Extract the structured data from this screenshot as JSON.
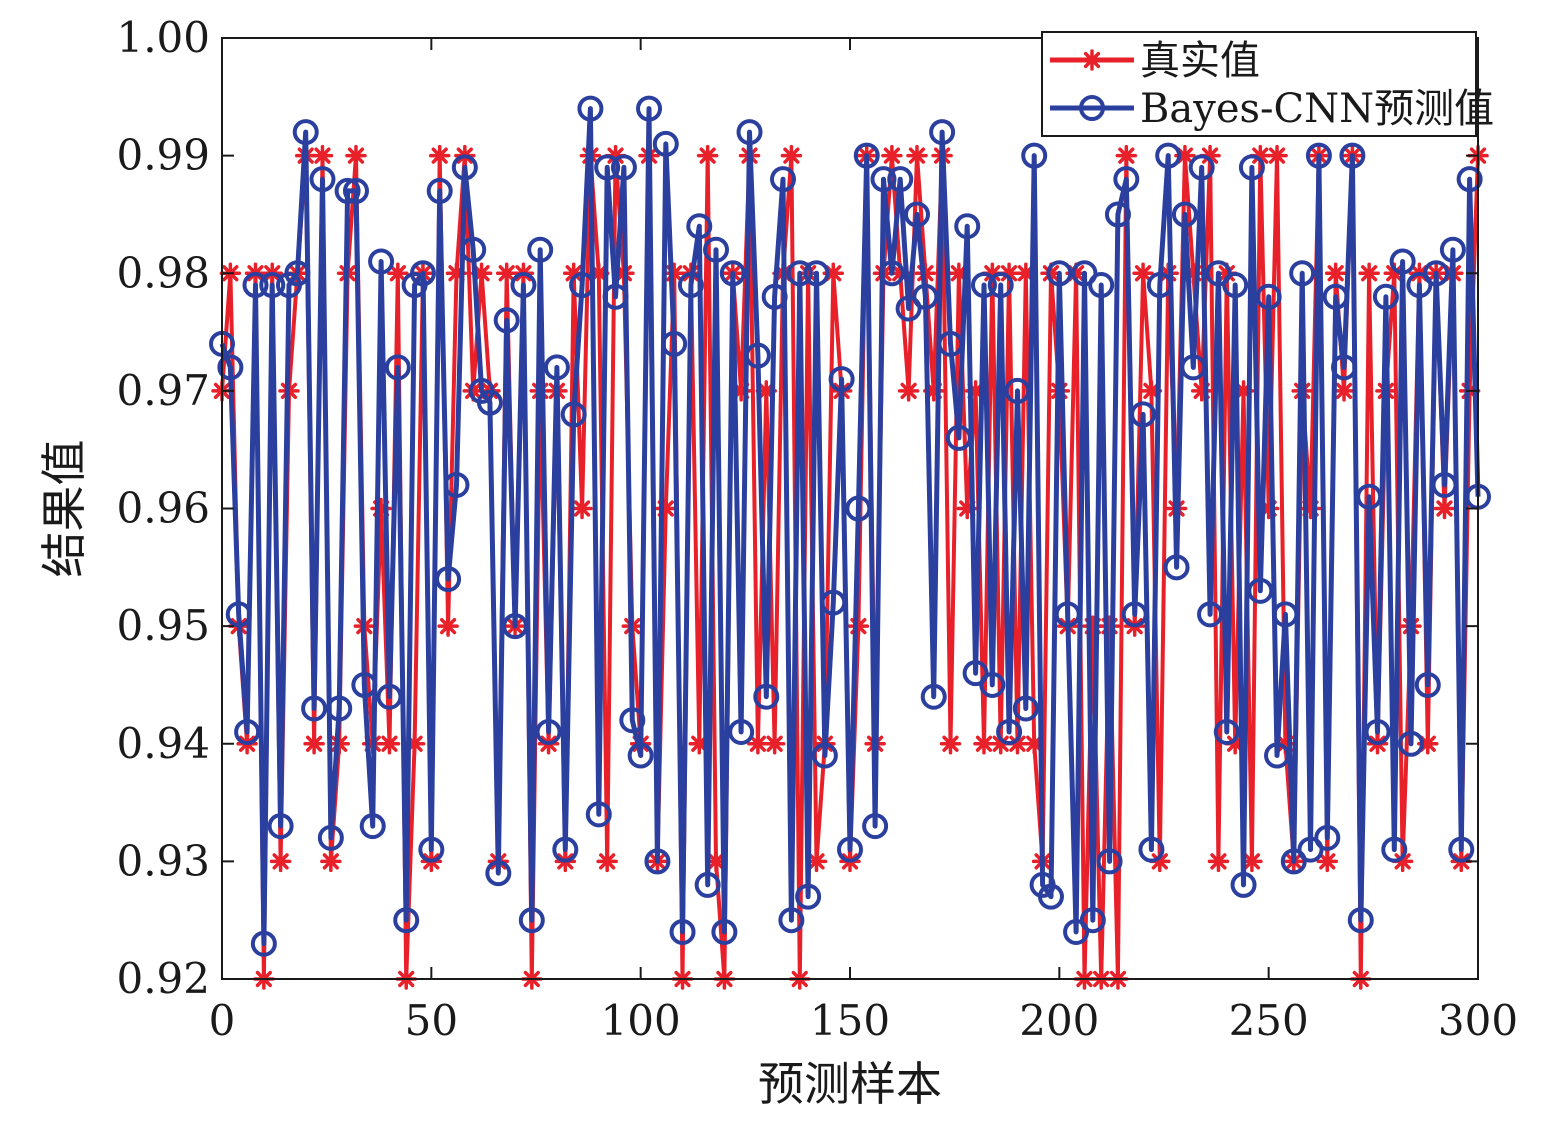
{
  "chart_data": {
    "type": "line",
    "xlabel": "预测样本",
    "ylabel": "结果值",
    "xlim": [
      0,
      300
    ],
    "ylim": [
      0.92,
      1.0
    ],
    "xticks": [
      "0",
      "50",
      "100",
      "150",
      "200",
      "250",
      "300"
    ],
    "yticks": [
      "0.92",
      "0.93",
      "0.94",
      "0.95",
      "0.96",
      "0.97",
      "0.98",
      "0.99",
      "1.00"
    ],
    "grid": false,
    "legend_position": "top-right",
    "series": [
      {
        "name": "真实值",
        "color": "#e8202a",
        "marker": "asterisk",
        "points": [
          [
            0,
            0.97
          ],
          [
            2,
            0.98
          ],
          [
            4,
            0.95
          ],
          [
            6,
            0.94
          ],
          [
            8,
            0.98
          ],
          [
            10,
            0.92
          ],
          [
            12,
            0.98
          ],
          [
            14,
            0.93
          ],
          [
            16,
            0.97
          ],
          [
            18,
            0.98
          ],
          [
            20,
            0.99
          ],
          [
            22,
            0.94
          ],
          [
            24,
            0.99
          ],
          [
            26,
            0.93
          ],
          [
            28,
            0.94
          ],
          [
            30,
            0.98
          ],
          [
            32,
            0.99
          ],
          [
            34,
            0.95
          ],
          [
            36,
            0.94
          ],
          [
            38,
            0.96
          ],
          [
            40,
            0.94
          ],
          [
            42,
            0.98
          ],
          [
            44,
            0.92
          ],
          [
            46,
            0.94
          ],
          [
            48,
            0.98
          ],
          [
            50,
            0.93
          ],
          [
            52,
            0.99
          ],
          [
            54,
            0.95
          ],
          [
            56,
            0.98
          ],
          [
            58,
            0.99
          ],
          [
            60,
            0.97
          ],
          [
            62,
            0.98
          ],
          [
            64,
            0.97
          ],
          [
            66,
            0.93
          ],
          [
            68,
            0.98
          ],
          [
            70,
            0.95
          ],
          [
            72,
            0.98
          ],
          [
            74,
            0.92
          ],
          [
            76,
            0.97
          ],
          [
            78,
            0.94
          ],
          [
            80,
            0.97
          ],
          [
            82,
            0.93
          ],
          [
            84,
            0.98
          ],
          [
            86,
            0.96
          ],
          [
            88,
            0.99
          ],
          [
            90,
            0.98
          ],
          [
            92,
            0.93
          ],
          [
            94,
            0.99
          ],
          [
            96,
            0.98
          ],
          [
            98,
            0.95
          ],
          [
            100,
            0.94
          ],
          [
            102,
            0.99
          ],
          [
            104,
            0.93
          ],
          [
            106,
            0.96
          ],
          [
            108,
            0.98
          ],
          [
            110,
            0.92
          ],
          [
            112,
            0.98
          ],
          [
            114,
            0.94
          ],
          [
            116,
            0.99
          ],
          [
            118,
            0.93
          ],
          [
            120,
            0.92
          ],
          [
            122,
            0.98
          ],
          [
            124,
            0.97
          ],
          [
            126,
            0.99
          ],
          [
            128,
            0.94
          ],
          [
            130,
            0.97
          ],
          [
            132,
            0.94
          ],
          [
            134,
            0.98
          ],
          [
            136,
            0.99
          ],
          [
            138,
            0.92
          ],
          [
            140,
            0.98
          ],
          [
            142,
            0.93
          ],
          [
            144,
            0.94
          ],
          [
            146,
            0.98
          ],
          [
            148,
            0.97
          ],
          [
            150,
            0.93
          ],
          [
            152,
            0.95
          ],
          [
            154,
            0.99
          ],
          [
            156,
            0.94
          ],
          [
            158,
            0.98
          ],
          [
            160,
            0.99
          ],
          [
            162,
            0.98
          ],
          [
            164,
            0.97
          ],
          [
            166,
            0.99
          ],
          [
            168,
            0.98
          ],
          [
            170,
            0.97
          ],
          [
            172,
            0.99
          ],
          [
            174,
            0.94
          ],
          [
            176,
            0.98
          ],
          [
            178,
            0.96
          ],
          [
            180,
            0.97
          ],
          [
            182,
            0.94
          ],
          [
            184,
            0.98
          ],
          [
            186,
            0.94
          ],
          [
            188,
            0.98
          ],
          [
            190,
            0.94
          ],
          [
            192,
            0.98
          ],
          [
            194,
            0.94
          ],
          [
            196,
            0.93
          ],
          [
            198,
            0.98
          ],
          [
            200,
            0.97
          ],
          [
            202,
            0.95
          ],
          [
            204,
            0.98
          ],
          [
            206,
            0.92
          ],
          [
            208,
            0.95
          ],
          [
            210,
            0.92
          ],
          [
            212,
            0.95
          ],
          [
            214,
            0.92
          ],
          [
            216,
            0.99
          ],
          [
            218,
            0.95
          ],
          [
            220,
            0.98
          ],
          [
            222,
            0.97
          ],
          [
            224,
            0.93
          ],
          [
            226,
            0.98
          ],
          [
            228,
            0.96
          ],
          [
            230,
            0.99
          ],
          [
            232,
            0.98
          ],
          [
            234,
            0.97
          ],
          [
            236,
            0.99
          ],
          [
            238,
            0.93
          ],
          [
            240,
            0.98
          ],
          [
            242,
            0.94
          ],
          [
            244,
            0.97
          ],
          [
            246,
            0.93
          ],
          [
            248,
            0.99
          ],
          [
            250,
            0.96
          ],
          [
            252,
            0.99
          ],
          [
            254,
            0.94
          ],
          [
            256,
            0.93
          ],
          [
            258,
            0.97
          ],
          [
            260,
            0.96
          ],
          [
            262,
            0.99
          ],
          [
            264,
            0.93
          ],
          [
            266,
            0.98
          ],
          [
            268,
            0.97
          ],
          [
            270,
            0.99
          ],
          [
            272,
            0.92
          ],
          [
            274,
            0.98
          ],
          [
            276,
            0.94
          ],
          [
            278,
            0.97
          ],
          [
            280,
            0.98
          ],
          [
            282,
            0.93
          ],
          [
            284,
            0.95
          ],
          [
            286,
            0.98
          ],
          [
            288,
            0.94
          ],
          [
            290,
            0.98
          ],
          [
            292,
            0.96
          ],
          [
            294,
            0.98
          ],
          [
            296,
            0.93
          ],
          [
            298,
            0.97
          ],
          [
            300,
            0.99
          ]
        ]
      },
      {
        "name": "Bayes-CNN预测值",
        "color": "#2b3f9e",
        "marker": "circle",
        "points": [
          [
            0,
            0.974
          ],
          [
            2,
            0.972
          ],
          [
            4,
            0.951
          ],
          [
            6,
            0.941
          ],
          [
            8,
            0.979
          ],
          [
            10,
            0.923
          ],
          [
            12,
            0.979
          ],
          [
            14,
            0.933
          ],
          [
            16,
            0.979
          ],
          [
            18,
            0.98
          ],
          [
            20,
            0.992
          ],
          [
            22,
            0.943
          ],
          [
            24,
            0.988
          ],
          [
            26,
            0.932
          ],
          [
            28,
            0.943
          ],
          [
            30,
            0.987
          ],
          [
            32,
            0.987
          ],
          [
            34,
            0.945
          ],
          [
            36,
            0.933
          ],
          [
            38,
            0.981
          ],
          [
            40,
            0.944
          ],
          [
            42,
            0.972
          ],
          [
            44,
            0.925
          ],
          [
            46,
            0.979
          ],
          [
            48,
            0.98
          ],
          [
            50,
            0.931
          ],
          [
            52,
            0.987
          ],
          [
            54,
            0.954
          ],
          [
            56,
            0.962
          ],
          [
            58,
            0.989
          ],
          [
            60,
            0.982
          ],
          [
            62,
            0.97
          ],
          [
            64,
            0.969
          ],
          [
            66,
            0.929
          ],
          [
            68,
            0.976
          ],
          [
            70,
            0.95
          ],
          [
            72,
            0.979
          ],
          [
            74,
            0.925
          ],
          [
            76,
            0.982
          ],
          [
            78,
            0.941
          ],
          [
            80,
            0.972
          ],
          [
            82,
            0.931
          ],
          [
            84,
            0.968
          ],
          [
            86,
            0.979
          ],
          [
            88,
            0.994
          ],
          [
            90,
            0.934
          ],
          [
            92,
            0.989
          ],
          [
            94,
            0.978
          ],
          [
            96,
            0.989
          ],
          [
            98,
            0.942
          ],
          [
            100,
            0.939
          ],
          [
            102,
            0.994
          ],
          [
            104,
            0.93
          ],
          [
            106,
            0.991
          ],
          [
            108,
            0.974
          ],
          [
            110,
            0.924
          ],
          [
            112,
            0.979
          ],
          [
            114,
            0.984
          ],
          [
            116,
            0.928
          ],
          [
            118,
            0.982
          ],
          [
            120,
            0.924
          ],
          [
            122,
            0.98
          ],
          [
            124,
            0.941
          ],
          [
            126,
            0.992
          ],
          [
            128,
            0.973
          ],
          [
            130,
            0.944
          ],
          [
            132,
            0.978
          ],
          [
            134,
            0.988
          ],
          [
            136,
            0.925
          ],
          [
            138,
            0.98
          ],
          [
            140,
            0.927
          ],
          [
            142,
            0.98
          ],
          [
            144,
            0.939
          ],
          [
            146,
            0.952
          ],
          [
            148,
            0.971
          ],
          [
            150,
            0.931
          ],
          [
            152,
            0.96
          ],
          [
            154,
            0.99
          ],
          [
            156,
            0.933
          ],
          [
            158,
            0.988
          ],
          [
            160,
            0.98
          ],
          [
            162,
            0.988
          ],
          [
            164,
            0.977
          ],
          [
            166,
            0.985
          ],
          [
            168,
            0.978
          ],
          [
            170,
            0.944
          ],
          [
            172,
            0.992
          ],
          [
            174,
            0.974
          ],
          [
            176,
            0.966
          ],
          [
            178,
            0.984
          ],
          [
            180,
            0.946
          ],
          [
            182,
            0.979
          ],
          [
            184,
            0.945
          ],
          [
            186,
            0.979
          ],
          [
            188,
            0.941
          ],
          [
            190,
            0.97
          ],
          [
            192,
            0.943
          ],
          [
            194,
            0.99
          ],
          [
            196,
            0.928
          ],
          [
            198,
            0.927
          ],
          [
            200,
            0.98
          ],
          [
            202,
            0.951
          ],
          [
            204,
            0.924
          ],
          [
            206,
            0.98
          ],
          [
            208,
            0.925
          ],
          [
            210,
            0.979
          ],
          [
            212,
            0.93
          ],
          [
            214,
            0.985
          ],
          [
            216,
            0.988
          ],
          [
            218,
            0.951
          ],
          [
            220,
            0.968
          ],
          [
            222,
            0.931
          ],
          [
            224,
            0.979
          ],
          [
            226,
            0.99
          ],
          [
            228,
            0.955
          ],
          [
            230,
            0.985
          ],
          [
            232,
            0.972
          ],
          [
            234,
            0.989
          ],
          [
            236,
            0.951
          ],
          [
            238,
            0.98
          ],
          [
            240,
            0.941
          ],
          [
            242,
            0.979
          ],
          [
            244,
            0.928
          ],
          [
            246,
            0.989
          ],
          [
            248,
            0.953
          ],
          [
            250,
            0.978
          ],
          [
            252,
            0.939
          ],
          [
            254,
            0.951
          ],
          [
            256,
            0.93
          ],
          [
            258,
            0.98
          ],
          [
            260,
            0.931
          ],
          [
            262,
            0.99
          ],
          [
            264,
            0.932
          ],
          [
            266,
            0.978
          ],
          [
            268,
            0.972
          ],
          [
            270,
            0.99
          ],
          [
            272,
            0.925
          ],
          [
            274,
            0.961
          ],
          [
            276,
            0.941
          ],
          [
            278,
            0.978
          ],
          [
            280,
            0.931
          ],
          [
            282,
            0.981
          ],
          [
            284,
            0.94
          ],
          [
            286,
            0.979
          ],
          [
            288,
            0.945
          ],
          [
            290,
            0.98
          ],
          [
            292,
            0.962
          ],
          [
            294,
            0.982
          ],
          [
            296,
            0.931
          ],
          [
            298,
            0.988
          ],
          [
            300,
            0.961
          ]
        ]
      }
    ]
  }
}
